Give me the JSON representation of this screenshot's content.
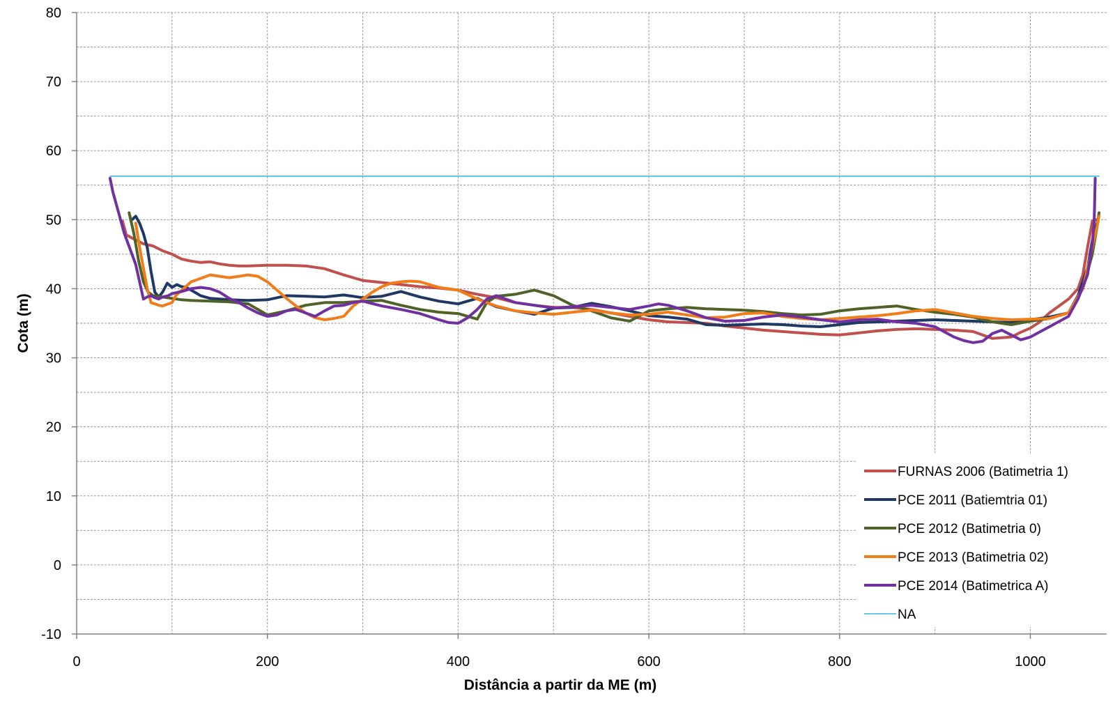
{
  "chart_data": {
    "type": "line",
    "title": "",
    "xlabel": "Distância a partir da ME (m)",
    "ylabel": "Cota (m)",
    "xlim": [
      0,
      1080
    ],
    "ylim": [
      -10,
      80
    ],
    "x_ticks": [
      0,
      200,
      400,
      600,
      800,
      1000
    ],
    "x_tick_labels": [
      "0",
      "200",
      "400",
      "600",
      "800",
      "1000"
    ],
    "y_ticks": [
      -10,
      0,
      10,
      20,
      30,
      40,
      50,
      60,
      70,
      80
    ],
    "y_tick_labels": [
      "-10",
      "0",
      "10",
      "20",
      "30",
      "40",
      "50",
      "60",
      "70",
      "80"
    ],
    "grid": true,
    "legend_position": "bottom-right",
    "series": [
      {
        "name": "FURNAS 2006 (Batimetria 1)",
        "color": "#c0504d",
        "width": 4,
        "x": [
          48,
          52,
          60,
          70,
          80,
          90,
          100,
          110,
          120,
          130,
          140,
          150,
          160,
          170,
          180,
          200,
          220,
          240,
          260,
          280,
          300,
          320,
          340,
          360,
          380,
          400,
          420,
          440,
          460,
          480,
          500,
          520,
          540,
          560,
          580,
          600,
          620,
          640,
          660,
          680,
          700,
          720,
          740,
          760,
          780,
          800,
          820,
          840,
          860,
          880,
          900,
          920,
          940,
          960,
          980,
          990,
          1000,
          1010,
          1020,
          1030,
          1040,
          1050,
          1055,
          1060,
          1065,
          1070
        ],
        "values": [
          49.8,
          47.8,
          47.2,
          46.5,
          46.2,
          45.5,
          45.0,
          44.3,
          44.0,
          43.8,
          43.9,
          43.6,
          43.4,
          43.3,
          43.3,
          43.4,
          43.4,
          43.3,
          42.9,
          42.0,
          41.2,
          40.9,
          40.6,
          40.3,
          40.1,
          39.8,
          39.2,
          38.7,
          38.0,
          37.6,
          37.3,
          37.3,
          37.0,
          36.5,
          36.0,
          35.5,
          35.2,
          35.1,
          35.0,
          34.6,
          34.3,
          34.0,
          33.8,
          33.6,
          33.4,
          33.3,
          33.6,
          33.9,
          34.1,
          34.2,
          34.1,
          34.0,
          33.8,
          32.8,
          33.0,
          33.7,
          34.3,
          35.2,
          36.5,
          37.5,
          38.5,
          40.0,
          42.0,
          46.0,
          49.8,
          50.0
        ]
      },
      {
        "name": "PCE 2011 (Batiemtria 01)",
        "color": "#1f3864",
        "width": 4,
        "x": [
          58,
          62,
          66,
          70,
          74,
          78,
          82,
          86,
          90,
          95,
          100,
          105,
          110,
          115,
          120,
          130,
          140,
          160,
          180,
          200,
          220,
          240,
          260,
          280,
          300,
          320,
          340,
          360,
          380,
          400,
          420,
          440,
          460,
          480,
          500,
          520,
          540,
          560,
          580,
          600,
          620,
          640,
          660,
          680,
          700,
          720,
          740,
          760,
          780,
          800,
          820,
          840,
          860,
          880,
          900,
          920,
          940,
          960,
          980,
          1000,
          1020,
          1040,
          1050,
          1060,
          1065,
          1070
        ],
        "values": [
          50.0,
          50.5,
          49.5,
          48.0,
          46.0,
          42.5,
          39.5,
          38.8,
          39.5,
          40.8,
          40.2,
          40.6,
          40.3,
          40.2,
          39.8,
          39.0,
          38.6,
          38.4,
          38.3,
          38.4,
          39.0,
          38.9,
          38.8,
          39.1,
          38.7,
          38.9,
          39.6,
          38.8,
          38.2,
          37.8,
          38.6,
          37.4,
          36.8,
          36.3,
          37.2,
          37.3,
          37.9,
          37.4,
          36.8,
          36.1,
          35.9,
          35.6,
          34.8,
          34.7,
          34.8,
          34.9,
          34.8,
          34.6,
          34.5,
          34.8,
          35.1,
          35.2,
          35.3,
          35.4,
          35.5,
          35.4,
          35.3,
          35.2,
          35.1,
          35.5,
          35.9,
          36.5,
          39.0,
          43.0,
          47.0,
          49.5
        ]
      },
      {
        "name": "PCE 2012 (Batimetria 0)",
        "color": "#4f6228",
        "width": 4,
        "x": [
          55,
          60,
          65,
          70,
          75,
          80,
          90,
          100,
          110,
          120,
          140,
          160,
          180,
          200,
          220,
          240,
          260,
          280,
          300,
          320,
          340,
          360,
          380,
          400,
          420,
          430,
          440,
          460,
          480,
          500,
          520,
          540,
          560,
          580,
          600,
          620,
          640,
          660,
          680,
          700,
          720,
          740,
          760,
          780,
          800,
          820,
          840,
          860,
          880,
          900,
          920,
          940,
          960,
          980,
          1000,
          1020,
          1040,
          1055,
          1065,
          1070,
          1072
        ],
        "values": [
          51.0,
          48.0,
          44.0,
          41.0,
          39.5,
          39.0,
          38.8,
          38.6,
          38.4,
          38.3,
          38.2,
          38.1,
          37.8,
          36.2,
          36.8,
          37.6,
          38.0,
          38.0,
          38.2,
          38.3,
          37.6,
          37.0,
          36.6,
          36.4,
          35.6,
          38.0,
          38.9,
          39.2,
          39.8,
          39.0,
          37.6,
          36.8,
          35.8,
          35.3,
          36.8,
          37.1,
          37.3,
          37.1,
          37.0,
          36.9,
          36.7,
          36.4,
          36.2,
          36.3,
          36.8,
          37.1,
          37.3,
          37.5,
          37.0,
          36.6,
          36.3,
          35.9,
          35.2,
          34.8,
          35.3,
          35.7,
          36.5,
          40.0,
          45.0,
          49.0,
          51.0
        ]
      },
      {
        "name": "PCE 2013 (Batimetria 02)",
        "color": "#f07d1a",
        "width": 4,
        "x": [
          62,
          66,
          70,
          74,
          78,
          82,
          86,
          90,
          96,
          100,
          104,
          108,
          112,
          116,
          120,
          130,
          140,
          150,
          160,
          170,
          180,
          190,
          200,
          210,
          220,
          230,
          240,
          250,
          260,
          270,
          280,
          290,
          300,
          310,
          320,
          330,
          340,
          350,
          360,
          380,
          400,
          420,
          440,
          460,
          480,
          500,
          520,
          540,
          560,
          580,
          600,
          620,
          640,
          660,
          680,
          700,
          720,
          740,
          760,
          780,
          800,
          820,
          840,
          860,
          880,
          900,
          920,
          940,
          960,
          980,
          1000,
          1020,
          1040,
          1055,
          1065,
          1070,
          1072
        ],
        "values": [
          49.5,
          46.0,
          43.0,
          40.0,
          38.0,
          37.8,
          37.6,
          37.5,
          37.8,
          38.0,
          39.0,
          39.5,
          40.0,
          40.5,
          41.0,
          41.5,
          42.0,
          41.8,
          41.6,
          41.8,
          42.0,
          41.8,
          41.0,
          39.8,
          38.6,
          37.5,
          36.5,
          35.8,
          35.5,
          35.7,
          36.0,
          37.5,
          38.5,
          39.5,
          40.3,
          40.8,
          41.0,
          41.1,
          41.0,
          40.2,
          39.8,
          38.5,
          37.5,
          36.8,
          36.5,
          36.3,
          36.6,
          36.9,
          36.5,
          36.2,
          36.3,
          36.6,
          36.2,
          35.8,
          35.9,
          36.4,
          36.5,
          36.0,
          35.7,
          35.5,
          35.7,
          35.9,
          36.1,
          36.4,
          36.8,
          37.0,
          36.5,
          36.0,
          35.7,
          35.5,
          35.6,
          35.7,
          36.5,
          40.0,
          46.0,
          49.0,
          50.5
        ]
      },
      {
        "name": "PCE 2014 (Batimetrica A)",
        "color": "#7030a0",
        "width": 4,
        "x": [
          35,
          38,
          42,
          46,
          50,
          54,
          58,
          62,
          66,
          70,
          74,
          78,
          82,
          86,
          90,
          96,
          100,
          110,
          120,
          130,
          140,
          150,
          160,
          170,
          180,
          190,
          200,
          210,
          220,
          230,
          240,
          250,
          260,
          270,
          280,
          290,
          300,
          320,
          340,
          360,
          380,
          390,
          400,
          410,
          420,
          430,
          440,
          460,
          480,
          500,
          520,
          540,
          560,
          580,
          600,
          610,
          620,
          640,
          660,
          680,
          700,
          720,
          740,
          760,
          780,
          800,
          820,
          840,
          860,
          880,
          900,
          920,
          930,
          940,
          950,
          960,
          970,
          980,
          990,
          1000,
          1020,
          1040,
          1050,
          1060,
          1065,
          1067,
          1068
        ],
        "values": [
          56.0,
          54.0,
          52.0,
          50.0,
          48.0,
          46.5,
          45.0,
          43.5,
          41.0,
          38.5,
          38.8,
          39.0,
          38.7,
          38.5,
          38.8,
          39.0,
          39.3,
          39.6,
          40.0,
          40.2,
          40.0,
          39.5,
          38.6,
          38.0,
          37.2,
          36.5,
          36.0,
          36.2,
          36.8,
          37.0,
          36.5,
          36.0,
          36.8,
          37.5,
          37.6,
          38.0,
          38.2,
          37.5,
          37.0,
          36.4,
          35.5,
          35.1,
          35.0,
          35.8,
          37.0,
          38.5,
          39.0,
          38.0,
          37.6,
          37.2,
          37.4,
          37.6,
          37.3,
          37.0,
          37.5,
          37.8,
          37.6,
          36.8,
          35.8,
          35.3,
          35.4,
          35.9,
          36.2,
          35.9,
          35.5,
          35.2,
          35.5,
          35.6,
          35.2,
          35.0,
          34.5,
          33.0,
          32.5,
          32.2,
          32.4,
          33.5,
          34.0,
          33.3,
          32.6,
          33.0,
          34.5,
          36.0,
          38.5,
          42.0,
          46.5,
          50.0,
          56.0
        ]
      },
      {
        "name": "NA",
        "color": "#33b5e5",
        "width": 1.5,
        "x": [
          35,
          1072
        ],
        "values": [
          56.3,
          56.3
        ]
      }
    ]
  }
}
